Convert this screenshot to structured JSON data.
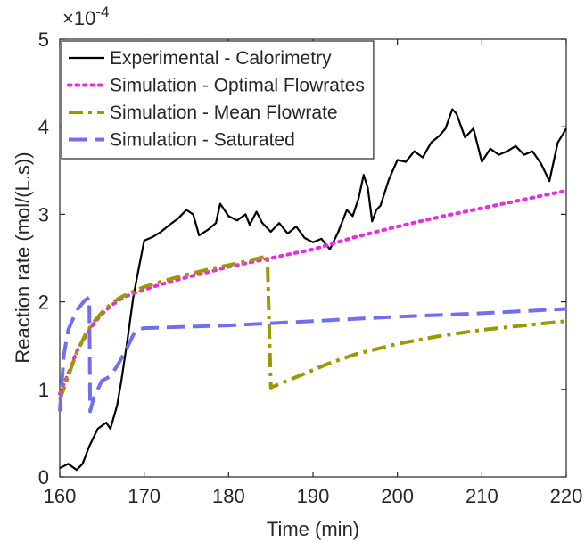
{
  "chart_data": {
    "type": "line",
    "xlabel": "Time (min)",
    "ylabel": "Reaction rate (mol/(L.s))",
    "y_exponent_label": "×10",
    "y_exponent_power": "-4",
    "xlim": [
      160,
      220
    ],
    "ylim": [
      0,
      5
    ],
    "xticks": [
      160,
      170,
      180,
      190,
      200,
      210,
      220
    ],
    "yticks": [
      0,
      1,
      2,
      3,
      4,
      5
    ],
    "grid": false,
    "legend_position": "top-left",
    "series": [
      {
        "name": "Experimental - Calorimetry",
        "style": "solid",
        "color": "#000000",
        "x": [
          160,
          161,
          162,
          162.7,
          163.5,
          164.5,
          165.5,
          166,
          166.8,
          167.3,
          168,
          168.7,
          169.3,
          170,
          171,
          172,
          173,
          174,
          175,
          175.8,
          176.5,
          177.5,
          178.5,
          179,
          180,
          181,
          182,
          182.5,
          183.3,
          184,
          185,
          186,
          187,
          188,
          189,
          190,
          191,
          192,
          193,
          194,
          194.7,
          195.4,
          196,
          196.5,
          197,
          197.5,
          198,
          199,
          200,
          201,
          202,
          203,
          204,
          205,
          205.7,
          206.5,
          207,
          208,
          209,
          210,
          211,
          212,
          213,
          214,
          215,
          216,
          217,
          218,
          219,
          220
        ],
        "values": [
          0.1,
          0.15,
          0.08,
          0.15,
          0.35,
          0.55,
          0.62,
          0.55,
          0.82,
          1.1,
          1.55,
          2.05,
          2.35,
          2.7,
          2.74,
          2.8,
          2.88,
          2.95,
          3.05,
          3.0,
          2.76,
          2.82,
          2.9,
          3.12,
          2.98,
          2.93,
          3.0,
          2.88,
          3.03,
          2.9,
          2.8,
          2.9,
          2.78,
          2.86,
          2.73,
          2.68,
          2.72,
          2.6,
          2.8,
          3.05,
          2.98,
          3.18,
          3.45,
          3.3,
          2.92,
          3.05,
          3.1,
          3.4,
          3.62,
          3.6,
          3.72,
          3.65,
          3.82,
          3.9,
          3.98,
          4.2,
          4.15,
          3.88,
          3.98,
          3.6,
          3.75,
          3.68,
          3.72,
          3.78,
          3.68,
          3.72,
          3.58,
          3.38,
          3.82,
          3.98
        ]
      },
      {
        "name": "Simulation - Optimal Flowrates",
        "style": "dotted",
        "color": "#ee28e4",
        "x": [
          160,
          161,
          162,
          163,
          164,
          165,
          166,
          167,
          168,
          170,
          172,
          175,
          178,
          180,
          182,
          185,
          190,
          195,
          200,
          205,
          210,
          215,
          220
        ],
        "values": [
          0.95,
          1.18,
          1.43,
          1.6,
          1.75,
          1.86,
          1.95,
          2.02,
          2.07,
          2.14,
          2.2,
          2.28,
          2.35,
          2.4,
          2.44,
          2.5,
          2.6,
          2.74,
          2.86,
          2.97,
          3.07,
          3.17,
          3.27
        ]
      },
      {
        "name": "Simulation - Mean Flowrate",
        "style": "dashdot",
        "color": "#9a9a00",
        "x": [
          160,
          161,
          162,
          163,
          164,
          165,
          166,
          167,
          168,
          170,
          172,
          175,
          178,
          180,
          182,
          184.5,
          184.6,
          185,
          186,
          188,
          190,
          192,
          195,
          200,
          205,
          210,
          215,
          220
        ],
        "values": [
          0.88,
          1.15,
          1.42,
          1.62,
          1.77,
          1.88,
          1.97,
          2.04,
          2.09,
          2.17,
          2.23,
          2.31,
          2.38,
          2.42,
          2.46,
          2.52,
          2.48,
          1.02,
          1.06,
          1.14,
          1.22,
          1.3,
          1.4,
          1.52,
          1.61,
          1.68,
          1.73,
          1.78
        ]
      },
      {
        "name": "Simulation - Saturated",
        "style": "dashed",
        "color": "#6f6ff2",
        "x": [
          160,
          160.5,
          161,
          162,
          163,
          163.5,
          163.6,
          164,
          164.5,
          165,
          166,
          167,
          168,
          169,
          170,
          180,
          190,
          200,
          210,
          220
        ],
        "values": [
          0.75,
          1.4,
          1.68,
          1.9,
          2.02,
          2.05,
          0.75,
          0.9,
          1.0,
          1.1,
          1.15,
          1.3,
          1.48,
          1.68,
          1.7,
          1.73,
          1.78,
          1.83,
          1.87,
          1.92
        ]
      }
    ]
  }
}
